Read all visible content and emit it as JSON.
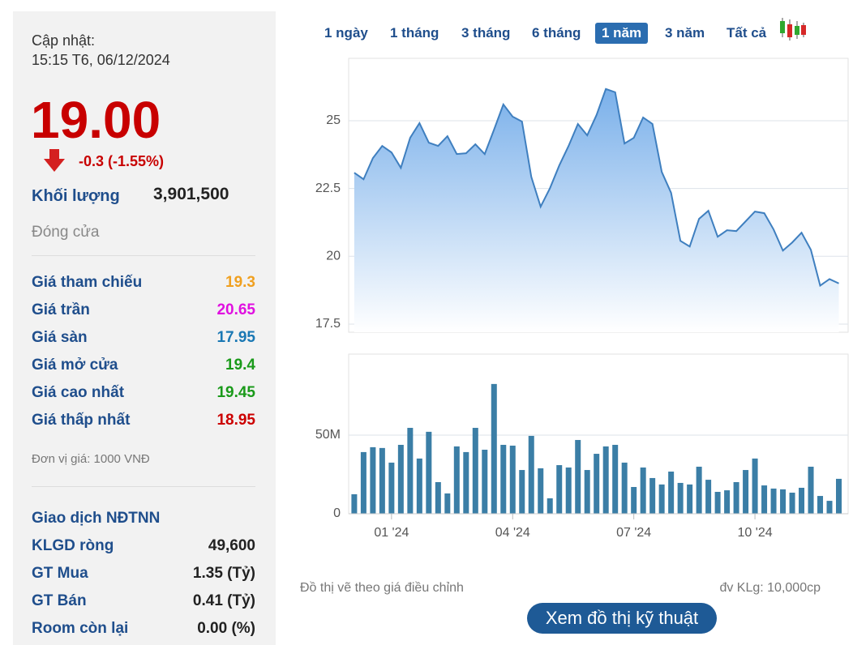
{
  "panel": {
    "update_label": "Cập nhật:",
    "update_time": "15:15 T6, 06/12/2024",
    "price": "19.00",
    "change": "-0.3 (-1.55%)",
    "volume_label": "Khối lượng",
    "volume": "3,901,500",
    "status": "Đóng cửa",
    "rows": [
      {
        "label": "Giá tham chiếu",
        "value": "19.3",
        "color": "#f0a020"
      },
      {
        "label": "Giá trần",
        "value": "20.65",
        "color": "#e010e0"
      },
      {
        "label": "Giá sàn",
        "value": "17.95",
        "color": "#1a78b4"
      },
      {
        "label": "Giá mở cửa",
        "value": "19.4",
        "color": "#1a9a1a"
      },
      {
        "label": "Giá cao nhất",
        "value": "19.45",
        "color": "#1a9a1a"
      },
      {
        "label": "Giá thấp nhất",
        "value": "18.95",
        "color": "#cc0000"
      }
    ],
    "unit": "Đơn vị giá: 1000 VNĐ",
    "foreign_title": "Giao dịch NĐTNN",
    "foreign_rows": [
      {
        "label": "KLGD ròng",
        "value": "49,600"
      },
      {
        "label": "GT Mua",
        "value": "1.35 (Tỷ)"
      },
      {
        "label": "GT Bán",
        "value": "0.41 (Tỷ)"
      },
      {
        "label": "Room còn lại",
        "value": "0.00 (%)"
      }
    ]
  },
  "tabs": [
    "1 ngày",
    "1 tháng",
    "3 tháng",
    "6 tháng",
    "1 năm",
    "3 năm",
    "Tất cả"
  ],
  "selected_tab": 4,
  "chart_data": [
    {
      "type": "line",
      "color": "#3f7fbf",
      "x": [
        0,
        1,
        2,
        3,
        4,
        5,
        6,
        7,
        8,
        9,
        10,
        11,
        12,
        13,
        14,
        15,
        16,
        17,
        18,
        19,
        20,
        21,
        22,
        23,
        24,
        25,
        26,
        27,
        28,
        29,
        30,
        31,
        32,
        33,
        34,
        35,
        36,
        37,
        38,
        39,
        40,
        41,
        42,
        43,
        44,
        45,
        46,
        47,
        48,
        49,
        50,
        51,
        52
      ],
      "values": [
        23.08,
        22.84,
        23.62,
        24.07,
        23.83,
        23.26,
        24.37,
        24.91,
        24.19,
        24.07,
        24.43,
        23.77,
        23.8,
        24.13,
        23.77,
        24.67,
        25.6,
        25.15,
        24.97,
        22.93,
        21.83,
        22.51,
        23.35,
        24.07,
        24.88,
        24.46,
        25.21,
        26.17,
        26.05,
        24.16,
        24.37,
        25.12,
        24.88,
        23.11,
        22.34,
        20.57,
        20.36,
        21.38,
        21.68,
        20.72,
        20.96,
        20.93,
        21.29,
        21.65,
        21.59,
        20.99,
        20.21,
        20.51,
        20.87,
        20.24,
        18.92,
        19.16,
        19.0
      ],
      "xlim": [
        -0.6,
        53
      ],
      "ylim": [
        17.2,
        27.3
      ],
      "yticks": [
        17.5,
        {
          "value": 22.5,
          "label": "22.5"
        },
        20,
        25
      ],
      "grid": true
    },
    {
      "type": "bar",
      "color": "#3b7ea6",
      "x": [
        0,
        1,
        2,
        3,
        4,
        5,
        6,
        7,
        8,
        9,
        10,
        11,
        12,
        13,
        14,
        15,
        16,
        17,
        18,
        19,
        20,
        21,
        22,
        23,
        24,
        25,
        26,
        27,
        28,
        29,
        30,
        31,
        32,
        33,
        34,
        35,
        36,
        37,
        38,
        39,
        40,
        41,
        42,
        43,
        44,
        45,
        46,
        47,
        48,
        49,
        50,
        51,
        52
      ],
      "values": [
        12.4,
        39.2,
        42.3,
        41.8,
        32.5,
        43.8,
        54.6,
        35.1,
        52.1,
        20.1,
        12.9,
        42.8,
        39.2,
        54.6,
        40.7,
        82.5,
        43.8,
        43.3,
        27.8,
        49.5,
        28.9,
        9.8,
        30.9,
        29.4,
        46.9,
        27.8,
        38.1,
        42.8,
        43.8,
        32.5,
        17.0,
        29.4,
        22.7,
        18.6,
        26.8,
        19.6,
        18.6,
        29.9,
        21.6,
        13.9,
        14.9,
        20.1,
        27.8,
        35.1,
        18.0,
        16.0,
        15.5,
        13.4,
        16.5,
        29.9,
        11.3,
        8.2,
        22.2
      ],
      "xlim": [
        -0.6,
        53
      ],
      "ylim": [
        0,
        101.5
      ],
      "yticks": [
        0,
        {
          "value": 50,
          "label": "50M"
        }
      ],
      "xticks": [
        {
          "value": 4,
          "label": "01 '24"
        },
        {
          "value": 17,
          "label": "04 '24"
        },
        {
          "value": 30,
          "label": "07 '24"
        },
        {
          "value": 43,
          "label": "10 '24"
        }
      ],
      "grid": true
    }
  ],
  "footer": {
    "note": "Đồ thị vẽ theo giá điều chỉnh",
    "unit": "đv KLg: 10,000cp",
    "button": "Xem đồ thị kỹ thuật"
  }
}
